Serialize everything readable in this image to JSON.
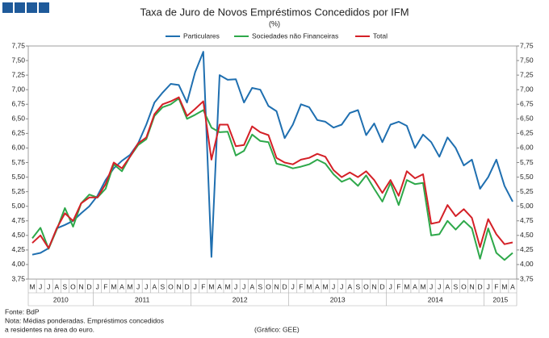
{
  "chart_data": {
    "type": "line",
    "title": "Taxa de Juro de Novos Empréstimos Concedidos por IFM",
    "subtitle": "(%)",
    "categories": [
      "M",
      "J",
      "J",
      "A",
      "S",
      "O",
      "N",
      "D",
      "J",
      "F",
      "M",
      "A",
      "M",
      "J",
      "J",
      "A",
      "S",
      "O",
      "N",
      "D",
      "J",
      "F",
      "M",
      "A",
      "M",
      "J",
      "J",
      "A",
      "S",
      "O",
      "N",
      "D",
      "J",
      "F",
      "M",
      "A",
      "M",
      "J",
      "J",
      "A",
      "S",
      "O",
      "N",
      "D",
      "J",
      "F",
      "M",
      "A",
      "M",
      "J",
      "J",
      "A",
      "S",
      "O",
      "N",
      "D",
      "J",
      "F",
      "M",
      "A"
    ],
    "years": [
      "2010",
      "2011",
      "2012",
      "2013",
      "2014",
      "2015"
    ],
    "series": [
      {
        "name": "Particulares",
        "color": "#1f6fb0",
        "values": [
          4.17,
          4.2,
          4.28,
          4.62,
          4.68,
          4.75,
          4.88,
          5.0,
          5.18,
          5.45,
          5.65,
          5.78,
          5.88,
          6.08,
          6.4,
          6.78,
          6.95,
          7.1,
          7.08,
          6.78,
          7.3,
          7.65,
          4.13,
          7.25,
          7.17,
          7.18,
          6.78,
          7.03,
          7.0,
          6.72,
          6.63,
          6.17,
          6.4,
          6.75,
          6.7,
          6.48,
          6.45,
          6.35,
          6.4,
          6.6,
          6.65,
          6.22,
          6.42,
          6.1,
          6.4,
          6.45,
          6.38,
          6.0,
          6.23,
          6.1,
          5.85,
          6.18,
          6.0,
          5.7,
          5.8,
          5.3,
          5.5,
          5.8,
          5.35,
          5.08
        ]
      },
      {
        "name": "Sociedades não Financeiras",
        "color": "#2ea84a",
        "values": [
          4.45,
          4.63,
          4.27,
          4.6,
          4.97,
          4.65,
          5.05,
          5.2,
          5.15,
          5.3,
          5.72,
          5.6,
          5.85,
          6.05,
          6.15,
          6.55,
          6.7,
          6.75,
          6.85,
          6.5,
          6.57,
          6.65,
          6.35,
          6.27,
          6.28,
          5.87,
          5.95,
          6.23,
          6.12,
          6.1,
          5.73,
          5.7,
          5.65,
          5.68,
          5.72,
          5.8,
          5.73,
          5.55,
          5.42,
          5.48,
          5.35,
          5.53,
          5.3,
          5.08,
          5.4,
          5.02,
          5.45,
          5.38,
          5.4,
          4.5,
          4.52,
          4.75,
          4.6,
          4.75,
          4.62,
          4.1,
          4.62,
          4.2,
          4.08,
          4.2
        ]
      },
      {
        "name": "Total",
        "color": "#d42027",
        "values": [
          4.37,
          4.5,
          4.28,
          4.62,
          4.88,
          4.75,
          5.05,
          5.15,
          5.15,
          5.38,
          5.75,
          5.65,
          5.85,
          6.08,
          6.18,
          6.58,
          6.75,
          6.8,
          6.87,
          6.55,
          6.67,
          6.8,
          5.8,
          6.4,
          6.4,
          6.03,
          6.05,
          6.37,
          6.27,
          6.22,
          5.83,
          5.75,
          5.72,
          5.8,
          5.83,
          5.9,
          5.85,
          5.62,
          5.5,
          5.58,
          5.5,
          5.6,
          5.45,
          5.23,
          5.45,
          5.18,
          5.6,
          5.48,
          5.55,
          4.7,
          4.73,
          5.02,
          4.83,
          4.95,
          4.8,
          4.3,
          4.78,
          4.52,
          4.35,
          4.38
        ]
      }
    ],
    "ylim": [
      3.75,
      7.75
    ],
    "yticks": [
      {
        "value": 3.75,
        "label": "3,75"
      },
      {
        "value": 4.0,
        "label": "4,00"
      },
      {
        "value": 4.25,
        "label": "4,25"
      },
      {
        "value": 4.5,
        "label": "4,50"
      },
      {
        "value": 4.75,
        "label": "4,75"
      },
      {
        "value": 5.0,
        "label": "5,00"
      },
      {
        "value": 5.25,
        "label": "5,25"
      },
      {
        "value": 5.5,
        "label": "5,50"
      },
      {
        "value": 5.75,
        "label": "5,75"
      },
      {
        "value": 6.0,
        "label": "6,00"
      },
      {
        "value": 6.25,
        "label": "6,25"
      },
      {
        "value": 6.5,
        "label": "6,50"
      },
      {
        "value": 6.75,
        "label": "6,75"
      },
      {
        "value": 7.0,
        "label": "7,00"
      },
      {
        "value": 7.25,
        "label": "7,25"
      },
      {
        "value": 7.5,
        "label": "7,50"
      },
      {
        "value": 7.75,
        "label": "7,75"
      }
    ],
    "grid": false,
    "notes": [
      "Fonte: BdP",
      "Nota: Médias ponderadas.  Empréstimos concedidos",
      "a residentes na área do euro."
    ],
    "credit": "(Gráfico: GEE)"
  }
}
